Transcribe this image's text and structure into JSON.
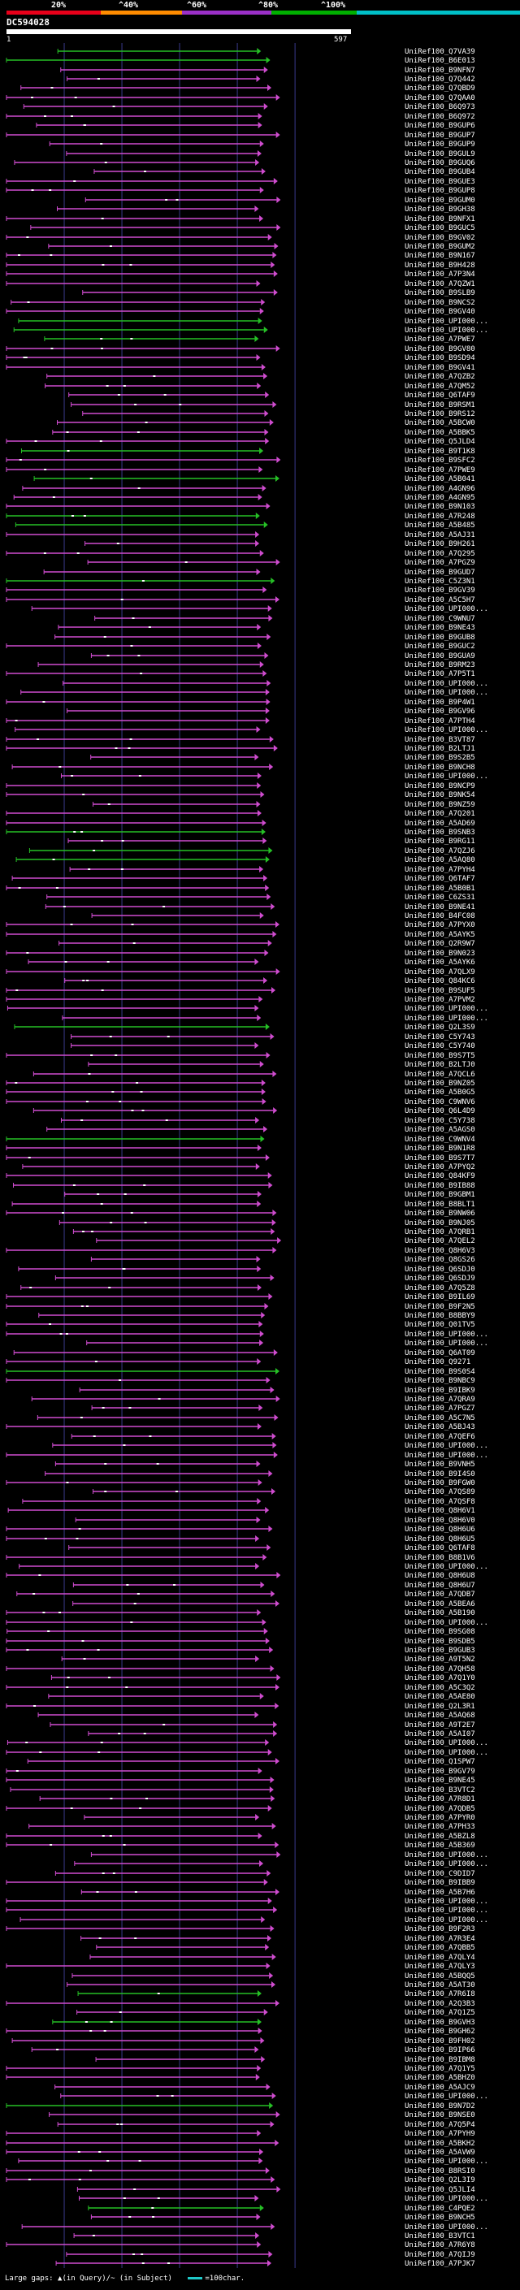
{
  "header": {
    "query_id": "DC594028",
    "start_label": "1",
    "end_label": "597"
  },
  "identity_scale": {
    "labels": [
      "20%",
      "^40%",
      "^60%",
      "^80%",
      "^100%"
    ],
    "colors": [
      "#e8001a",
      "#ff8c00",
      "#9b30c8",
      "#00b000",
      "#00c0c8"
    ]
  },
  "colors": {
    "purple": "#cf4ccf",
    "green": "#26c026",
    "query_bar": "#ffffff",
    "grid": "#3a3a8c",
    "scale_line": "#1fc9c9"
  },
  "footer": {
    "large_gaps_label": "Large gaps:",
    "in_query_label": "(in Query)/",
    "in_subject_label": "(in Subject)",
    "scale_label": "=100char."
  },
  "chart_data": {
    "type": "alignment-overview",
    "query_length": 597,
    "hits": [
      {
        "name": "UniRef100_Q7VA39",
        "color": "green"
      },
      {
        "name": "UniRef100_B6E013",
        "color": "green"
      },
      {
        "name": "UniRef100_B9NFN7",
        "color": "purple"
      },
      {
        "name": "UniRef100_Q7Q442",
        "color": "purple"
      },
      {
        "name": "UniRef100_Q7QBD9",
        "color": "purple"
      },
      {
        "name": "UniRef100_Q7QAA0",
        "color": "purple"
      },
      {
        "name": "UniRef100_B6Q973",
        "color": "purple"
      },
      {
        "name": "UniRef100_B6Q972",
        "color": "purple"
      },
      {
        "name": "UniRef100_B9GUP6",
        "color": "purple"
      },
      {
        "name": "UniRef100_B9GUP7",
        "color": "purple"
      },
      {
        "name": "UniRef100_B9GUP9",
        "color": "purple"
      },
      {
        "name": "UniRef100_B9GUL9",
        "color": "purple"
      },
      {
        "name": "UniRef100_B9GUQ6",
        "color": "purple"
      },
      {
        "name": "UniRef100_B9GUB4",
        "color": "purple"
      },
      {
        "name": "UniRef100_B9GUE3",
        "color": "purple"
      },
      {
        "name": "UniRef100_B9GUP8",
        "color": "purple"
      },
      {
        "name": "UniRef100_B9GUM0",
        "color": "purple"
      },
      {
        "name": "UniRef100_B9GH38",
        "color": "purple"
      },
      {
        "name": "UniRef100_B9NFX1",
        "color": "purple"
      },
      {
        "name": "UniRef100_B9GUC5",
        "color": "purple"
      },
      {
        "name": "UniRef100_B9GV02",
        "color": "purple"
      },
      {
        "name": "UniRef100_B9GUM2",
        "color": "purple"
      },
      {
        "name": "UniRef100_B9N167",
        "color": "purple"
      },
      {
        "name": "UniRef100_B9H428",
        "color": "purple"
      },
      {
        "name": "UniRef100_A7P3N4",
        "color": "purple"
      },
      {
        "name": "UniRef100_A7QZW1",
        "color": "purple"
      },
      {
        "name": "UniRef100_B9SLB9",
        "color": "purple"
      },
      {
        "name": "UniRef100_B9NCS2",
        "color": "purple"
      },
      {
        "name": "UniRef100_B9GV40",
        "color": "purple"
      },
      {
        "name": "UniRef100_UPI000...",
        "color": "green"
      },
      {
        "name": "UniRef100_UPI000...",
        "color": "green"
      },
      {
        "name": "UniRef100_A7PWE7",
        "color": "green"
      },
      {
        "name": "UniRef100_B9GV80",
        "color": "purple"
      },
      {
        "name": "UniRef100_B9SD94",
        "color": "purple"
      },
      {
        "name": "UniRef100_B9GV41",
        "color": "purple"
      },
      {
        "name": "UniRef100_A7QZB2",
        "color": "purple"
      },
      {
        "name": "UniRef100_A7QM52",
        "color": "purple"
      },
      {
        "name": "UniRef100_Q6TAF9",
        "color": "purple"
      },
      {
        "name": "UniRef100_B9RSM1",
        "color": "purple"
      },
      {
        "name": "UniRef100_B9RS12",
        "color": "purple"
      },
      {
        "name": "UniRef100_A5BCW0",
        "color": "purple"
      },
      {
        "name": "UniRef100_A5BBK5",
        "color": "purple"
      },
      {
        "name": "UniRef100_Q5JLD4",
        "color": "purple"
      },
      {
        "name": "UniRef100_B9T1K8",
        "color": "green"
      },
      {
        "name": "UniRef100_B9SFC2",
        "color": "purple"
      },
      {
        "name": "UniRef100_A7PWE9",
        "color": "purple"
      },
      {
        "name": "UniRef100_A5B041",
        "color": "green"
      },
      {
        "name": "UniRef100_A4GN96",
        "color": "purple"
      },
      {
        "name": "UniRef100_A4GN95",
        "color": "purple"
      },
      {
        "name": "UniRef100_B9N103",
        "color": "purple"
      },
      {
        "name": "UniRef100_A7R248",
        "color": "green"
      },
      {
        "name": "UniRef100_A5B485",
        "color": "green"
      },
      {
        "name": "UniRef100_A5AJ31",
        "color": "purple"
      },
      {
        "name": "UniRef100_B9H261",
        "color": "purple"
      },
      {
        "name": "UniRef100_A7Q295",
        "color": "purple"
      },
      {
        "name": "UniRef100_A7PGZ9",
        "color": "purple"
      },
      {
        "name": "UniRef100_B9GUD7",
        "color": "purple"
      },
      {
        "name": "UniRef100_C5Z3N1",
        "color": "green"
      },
      {
        "name": "UniRef100_B9GV39",
        "color": "purple"
      },
      {
        "name": "UniRef100_A5C5H7",
        "color": "purple"
      },
      {
        "name": "UniRef100_UPI000...",
        "color": "purple"
      },
      {
        "name": "UniRef100_C9WNU7",
        "color": "purple"
      },
      {
        "name": "UniRef100_B9NE43",
        "color": "purple"
      },
      {
        "name": "UniRef100_B9GUB8",
        "color": "purple"
      },
      {
        "name": "UniRef100_B9GUC2",
        "color": "purple"
      },
      {
        "name": "UniRef100_B9GUA9",
        "color": "purple"
      },
      {
        "name": "UniRef100_B9RM23",
        "color": "purple"
      },
      {
        "name": "UniRef100_A7P5T1",
        "color": "purple"
      },
      {
        "name": "UniRef100_UPI000...",
        "color": "purple"
      },
      {
        "name": "UniRef100_UPI000...",
        "color": "purple"
      },
      {
        "name": "UniRef100_B9P4W1",
        "color": "purple"
      },
      {
        "name": "UniRef100_B9GV96",
        "color": "purple"
      },
      {
        "name": "UniRef100_A7PTH4",
        "color": "purple"
      },
      {
        "name": "UniRef100_UPI000...",
        "color": "purple"
      },
      {
        "name": "UniRef100_B3VT87",
        "color": "purple"
      },
      {
        "name": "UniRef100_B2LTJ1",
        "color": "purple"
      },
      {
        "name": "UniRef100_B9S2B5",
        "color": "purple"
      },
      {
        "name": "UniRef100_B9NCH8",
        "color": "purple"
      },
      {
        "name": "UniRef100_UPI000...",
        "color": "purple"
      },
      {
        "name": "UniRef100_B9NCP9",
        "color": "purple"
      },
      {
        "name": "UniRef100_B9NK54",
        "color": "purple"
      },
      {
        "name": "UniRef100_B9NZ59",
        "color": "purple"
      },
      {
        "name": "UniRef100_A7Q201",
        "color": "purple"
      },
      {
        "name": "UniRef100_A5AD69",
        "color": "purple"
      },
      {
        "name": "UniRef100_B9SNB3",
        "color": "green"
      },
      {
        "name": "UniRef100_B9RG11",
        "color": "purple"
      },
      {
        "name": "UniRef100_A7QZJ6",
        "color": "green"
      },
      {
        "name": "UniRef100_A5AQ80",
        "color": "green"
      },
      {
        "name": "UniRef100_A7PYH4",
        "color": "purple"
      },
      {
        "name": "UniRef100_Q6TAF7",
        "color": "purple"
      },
      {
        "name": "UniRef100_A5B0B1",
        "color": "purple"
      },
      {
        "name": "UniRef100_C6ZS31",
        "color": "purple"
      },
      {
        "name": "UniRef100_B9NE41",
        "color": "purple"
      },
      {
        "name": "UniRef100_B4FC08",
        "color": "purple"
      },
      {
        "name": "UniRef100_A7PYX0",
        "color": "purple"
      },
      {
        "name": "UniRef100_A5AYK5",
        "color": "purple"
      },
      {
        "name": "UniRef100_Q2R9W7",
        "color": "purple"
      },
      {
        "name": "UniRef100_B9N023",
        "color": "purple"
      },
      {
        "name": "UniRef100_A5AYK6",
        "color": "purple"
      },
      {
        "name": "UniRef100_A7QLX9",
        "color": "purple"
      },
      {
        "name": "UniRef100_Q84KC6",
        "color": "purple"
      },
      {
        "name": "UniRef100_B9SUF5",
        "color": "purple"
      },
      {
        "name": "UniRef100_A7PVM2",
        "color": "purple"
      },
      {
        "name": "UniRef100_UPI000...",
        "color": "purple"
      },
      {
        "name": "UniRef100_UPI000...",
        "color": "purple"
      },
      {
        "name": "UniRef100_Q2L3S9",
        "color": "green"
      },
      {
        "name": "UniRef100_C5Y743",
        "color": "purple"
      },
      {
        "name": "UniRef100_C5Y740",
        "color": "purple"
      },
      {
        "name": "UniRef100_B9S7T5",
        "color": "purple"
      },
      {
        "name": "UniRef100_B2LTJ0",
        "color": "purple"
      },
      {
        "name": "UniRef100_A7QCL6",
        "color": "purple"
      },
      {
        "name": "UniRef100_B9NZ05",
        "color": "purple"
      },
      {
        "name": "UniRef100_A5B0G5",
        "color": "purple"
      },
      {
        "name": "UniRef100_C9WNV6",
        "color": "purple"
      },
      {
        "name": "UniRef100_Q6L4D9",
        "color": "purple"
      },
      {
        "name": "UniRef100_C5Y738",
        "color": "purple"
      },
      {
        "name": "UniRef100_A5AGS0",
        "color": "purple"
      },
      {
        "name": "UniRef100_C9WNV4",
        "color": "green"
      },
      {
        "name": "UniRef100_B9N1R8",
        "color": "purple"
      },
      {
        "name": "UniRef100_B9S7T7",
        "color": "purple"
      },
      {
        "name": "UniRef100_A7PYQ2",
        "color": "purple"
      },
      {
        "name": "UniRef100_Q84KF9",
        "color": "purple"
      },
      {
        "name": "UniRef100_B9IB88",
        "color": "purple"
      },
      {
        "name": "UniRef100_B9GBM1",
        "color": "purple"
      },
      {
        "name": "UniRef100_B8BLT1",
        "color": "purple"
      },
      {
        "name": "UniRef100_B9NW06",
        "color": "purple"
      },
      {
        "name": "UniRef100_B9NJ05",
        "color": "purple"
      },
      {
        "name": "UniRef100_A7QRB1",
        "color": "purple"
      },
      {
        "name": "UniRef100_A7QEL2",
        "color": "purple"
      },
      {
        "name": "UniRef100_Q8H6V3",
        "color": "purple"
      },
      {
        "name": "UniRef100_Q8GS26",
        "color": "purple"
      },
      {
        "name": "UniRef100_Q6SDJ0",
        "color": "purple"
      },
      {
        "name": "UniRef100_Q6SDJ9",
        "color": "purple"
      },
      {
        "name": "UniRef100_A7Q5Z8",
        "color": "purple"
      },
      {
        "name": "UniRef100_B9IL69",
        "color": "purple"
      },
      {
        "name": "UniRef100_B9F2N5",
        "color": "purple"
      },
      {
        "name": "UniRef100_B8BBY9",
        "color": "purple"
      },
      {
        "name": "UniRef100_Q01TV5",
        "color": "purple"
      },
      {
        "name": "UniRef100_UPI000...",
        "color": "purple"
      },
      {
        "name": "UniRef100_UPI000...",
        "color": "purple"
      },
      {
        "name": "UniRef100_Q6AT09",
        "color": "purple"
      },
      {
        "name": "UniRef100_Q9271",
        "color": "purple"
      },
      {
        "name": "UniRef100_B9S0S4",
        "color": "green"
      },
      {
        "name": "UniRef100_B9NBC9",
        "color": "purple"
      },
      {
        "name": "UniRef100_B9IBK9",
        "color": "purple"
      },
      {
        "name": "UniRef100_A7QRA9",
        "color": "purple"
      },
      {
        "name": "UniRef100_A7PGZ7",
        "color": "purple"
      },
      {
        "name": "UniRef100_A5C7N5",
        "color": "purple"
      },
      {
        "name": "UniRef100_A5BJ43",
        "color": "purple"
      },
      {
        "name": "UniRef100_A7QEF6",
        "color": "purple"
      },
      {
        "name": "UniRef100_UPI000...",
        "color": "purple"
      },
      {
        "name": "UniRef100_UPI000...",
        "color": "purple"
      },
      {
        "name": "UniRef100_B9VNH5",
        "color": "purple"
      },
      {
        "name": "UniRef100_B9I4S0",
        "color": "purple"
      },
      {
        "name": "UniRef100_B9FGW0",
        "color": "purple"
      },
      {
        "name": "UniRef100_A7QS89",
        "color": "purple"
      },
      {
        "name": "UniRef100_A7QSF8",
        "color": "purple"
      },
      {
        "name": "UniRef100_Q8H6V1",
        "color": "purple"
      },
      {
        "name": "UniRef100_Q8H6V0",
        "color": "purple"
      },
      {
        "name": "UniRef100_Q8H6U6",
        "color": "purple"
      },
      {
        "name": "UniRef100_Q8H6U5",
        "color": "purple"
      },
      {
        "name": "UniRef100_Q6TAF8",
        "color": "purple"
      },
      {
        "name": "UniRef100_B8B1V6",
        "color": "purple"
      },
      {
        "name": "UniRef100_UPI000...",
        "color": "purple"
      },
      {
        "name": "UniRef100_Q8H6U8",
        "color": "purple"
      },
      {
        "name": "UniRef100_Q8H6U7",
        "color": "purple"
      },
      {
        "name": "UniRef100_A7QDB7",
        "color": "purple"
      },
      {
        "name": "UniRef100_A5BEA6",
        "color": "purple"
      },
      {
        "name": "UniRef100_A5B190",
        "color": "purple"
      },
      {
        "name": "UniRef100_UPI000...",
        "color": "purple"
      },
      {
        "name": "UniRef100_B9SG08",
        "color": "purple"
      },
      {
        "name": "UniRef100_B9SDB5",
        "color": "purple"
      },
      {
        "name": "UniRef100_B9GUB3",
        "color": "purple"
      },
      {
        "name": "UniRef100_A9T5N2",
        "color": "purple"
      },
      {
        "name": "UniRef100_A7QH58",
        "color": "purple"
      },
      {
        "name": "UniRef100_A7Q1Y0",
        "color": "purple"
      },
      {
        "name": "UniRef100_A5C3Q2",
        "color": "purple"
      },
      {
        "name": "UniRef100_A5AE80",
        "color": "purple"
      },
      {
        "name": "UniRef100_Q2L3R1",
        "color": "purple"
      },
      {
        "name": "UniRef100_A5AQ68",
        "color": "purple"
      },
      {
        "name": "UniRef100_A9T2E7",
        "color": "purple"
      },
      {
        "name": "UniRef100_A5AI07",
        "color": "purple"
      },
      {
        "name": "UniRef100_UPI000...",
        "color": "purple"
      },
      {
        "name": "UniRef100_UPI000...",
        "color": "purple"
      },
      {
        "name": "UniRef100_Q1SPW7",
        "color": "purple"
      },
      {
        "name": "UniRef100_B9GV79",
        "color": "purple"
      },
      {
        "name": "UniRef100_B9NE45",
        "color": "purple"
      },
      {
        "name": "UniRef100_B3VTC2",
        "color": "purple"
      },
      {
        "name": "UniRef100_A7R8D1",
        "color": "purple"
      },
      {
        "name": "UniRef100_A7QDB5",
        "color": "purple"
      },
      {
        "name": "UniRef100_A7PYR0",
        "color": "purple"
      },
      {
        "name": "UniRef100_A7PH33",
        "color": "purple"
      },
      {
        "name": "UniRef100_A5BZL8",
        "color": "purple"
      },
      {
        "name": "UniRef100_A5B369",
        "color": "purple"
      },
      {
        "name": "UniRef100_UPI000...",
        "color": "purple"
      },
      {
        "name": "UniRef100_UPI000...",
        "color": "purple"
      },
      {
        "name": "UniRef100_C9DID7",
        "color": "purple"
      },
      {
        "name": "UniRef100_B9IBB9",
        "color": "purple"
      },
      {
        "name": "UniRef100_A5B7H6",
        "color": "purple"
      },
      {
        "name": "UniRef100_UPI000...",
        "color": "purple"
      },
      {
        "name": "UniRef100_UPI000...",
        "color": "purple"
      },
      {
        "name": "UniRef100_UPI000...",
        "color": "purple"
      },
      {
        "name": "UniRef100_B9F2R3",
        "color": "purple"
      },
      {
        "name": "UniRef100_A7R3E4",
        "color": "purple"
      },
      {
        "name": "UniRef100_A7QBB5",
        "color": "purple"
      },
      {
        "name": "UniRef100_A7QLY4",
        "color": "purple"
      },
      {
        "name": "UniRef100_A7QLY3",
        "color": "purple"
      },
      {
        "name": "UniRef100_A5BQQ5",
        "color": "purple"
      },
      {
        "name": "UniRef100_A5AT30",
        "color": "purple"
      },
      {
        "name": "UniRef100_A7R6I8",
        "color": "green"
      },
      {
        "name": "UniRef100_A2Q3B3",
        "color": "purple"
      },
      {
        "name": "UniRef100_A7Q1Z5",
        "color": "purple"
      },
      {
        "name": "UniRef100_B9GVH3",
        "color": "green"
      },
      {
        "name": "UniRef100_B9GH62",
        "color": "purple"
      },
      {
        "name": "UniRef100_B9FH02",
        "color": "purple"
      },
      {
        "name": "UniRef100_B9IP66",
        "color": "purple"
      },
      {
        "name": "UniRef100_B9IBM8",
        "color": "purple"
      },
      {
        "name": "UniRef100_A7Q1Y5",
        "color": "purple"
      },
      {
        "name": "UniRef100_A5BHZ0",
        "color": "purple"
      },
      {
        "name": "UniRef100_A5AJC9",
        "color": "purple"
      },
      {
        "name": "UniRef100_UPI000...",
        "color": "purple"
      },
      {
        "name": "UniRef100_B9N7D2",
        "color": "green"
      },
      {
        "name": "UniRef100_B9NSE0",
        "color": "purple"
      },
      {
        "name": "UniRef100_A7Q5P4",
        "color": "purple"
      },
      {
        "name": "UniRef100_A7PYH9",
        "color": "purple"
      },
      {
        "name": "UniRef100_A5BKH2",
        "color": "purple"
      },
      {
        "name": "UniRef100_A5AVW9",
        "color": "purple"
      },
      {
        "name": "UniRef100_UPI000...",
        "color": "purple"
      },
      {
        "name": "UniRef100_B8RSI0",
        "color": "purple"
      },
      {
        "name": "UniRef100_Q2L3I9",
        "color": "purple"
      },
      {
        "name": "UniRef100_Q5JLI4",
        "color": "purple"
      },
      {
        "name": "UniRef100_UPI000...",
        "color": "purple"
      },
      {
        "name": "UniRef100_C4PQE2",
        "color": "green"
      },
      {
        "name": "UniRef100_B9NCH5",
        "color": "purple"
      },
      {
        "name": "UniRef100_UPI000...",
        "color": "purple"
      },
      {
        "name": "UniRef100_B3VTC1",
        "color": "purple"
      },
      {
        "name": "UniRef100_A7R6Y8",
        "color": "purple"
      },
      {
        "name": "UniRef100_A7QIJ9",
        "color": "purple"
      },
      {
        "name": "UniRef100_A7PJK7",
        "color": "purple"
      }
    ]
  }
}
